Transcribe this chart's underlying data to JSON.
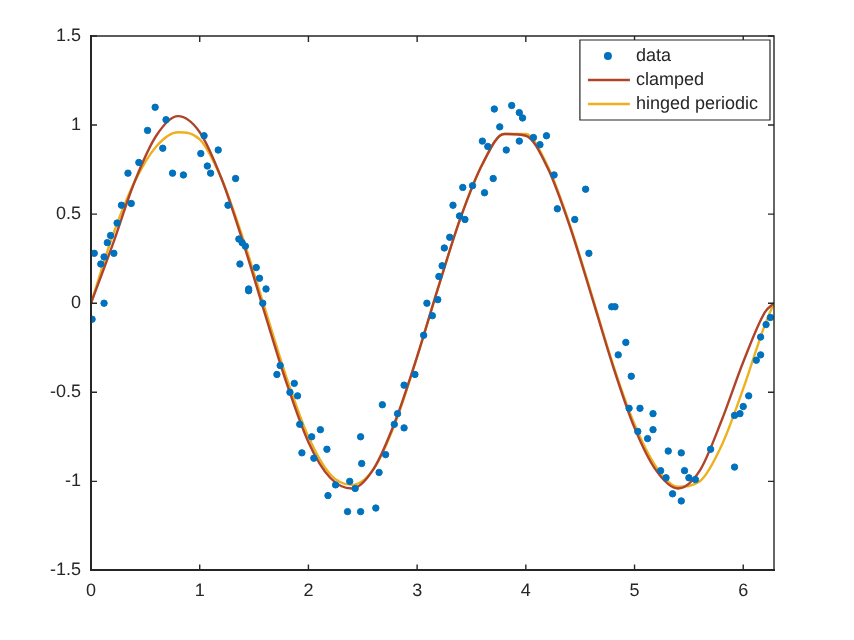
{
  "chart_data": {
    "type": "line",
    "xlim": [
      0,
      6.283
    ],
    "xticks": [
      0,
      1,
      2,
      3,
      4,
      5,
      6
    ],
    "ylim": [
      -1.5,
      1.5
    ],
    "yticks": [
      -1.5,
      -1,
      -0.5,
      0,
      0.5,
      1,
      1.5
    ],
    "grid": false,
    "legend": "top right",
    "series": [
      {
        "name": "data",
        "type": "scatter",
        "marker": "circle",
        "color": "#0072bd",
        "x": [
          0.01,
          0.03,
          0.09,
          0.12,
          0.12,
          0.15,
          0.18,
          0.21,
          0.24,
          0.28,
          0.34,
          0.37,
          0.44,
          0.52,
          0.59,
          0.66,
          0.69,
          0.75,
          0.85,
          1.01,
          1.04,
          1.07,
          1.1,
          1.17,
          1.26,
          1.33,
          1.36,
          1.37,
          1.39,
          1.42,
          1.45,
          1.45,
          1.52,
          1.55,
          1.58,
          1.61,
          1.71,
          1.74,
          1.83,
          1.87,
          1.9,
          1.92,
          1.94,
          2.03,
          2.05,
          2.11,
          2.17,
          2.18,
          2.25,
          2.36,
          2.38,
          2.43,
          2.48,
          2.48,
          2.49,
          2.62,
          2.65,
          2.68,
          2.71,
          2.79,
          2.82,
          2.88,
          2.88,
          2.98,
          3.06,
          3.09,
          3.14,
          3.19,
          3.2,
          3.23,
          3.25,
          3.3,
          3.33,
          3.39,
          3.42,
          3.44,
          3.51,
          3.6,
          3.62,
          3.65,
          3.7,
          3.71,
          3.76,
          3.82,
          3.87,
          3.94,
          3.94,
          3.97,
          4.07,
          4.13,
          4.19,
          4.26,
          4.29,
          4.45,
          4.55,
          4.58,
          4.79,
          4.82,
          4.85,
          4.92,
          4.95,
          4.97,
          5.03,
          5.05,
          5.12,
          5.17,
          5.17,
          5.24,
          5.29,
          5.31,
          5.35,
          5.43,
          5.43,
          5.46,
          5.5,
          5.56,
          5.7,
          5.92,
          5.92,
          5.97,
          6.0,
          6.05,
          6.12,
          6.16,
          6.16,
          6.21,
          6.25
        ],
        "values": [
          -0.09,
          0.28,
          0.22,
          0.26,
          0.0,
          0.34,
          0.38,
          0.28,
          0.45,
          0.55,
          0.73,
          0.56,
          0.79,
          0.97,
          1.1,
          0.87,
          1.03,
          0.73,
          0.72,
          0.84,
          0.94,
          0.77,
          0.73,
          0.86,
          0.55,
          0.7,
          0.36,
          0.22,
          0.34,
          0.32,
          0.07,
          0.08,
          0.2,
          0.14,
          0.0,
          0.08,
          -0.4,
          -0.35,
          -0.5,
          -0.45,
          -0.52,
          -0.68,
          -0.84,
          -0.75,
          -0.87,
          -0.71,
          -0.82,
          -1.08,
          -1.02,
          -1.17,
          -1.0,
          -1.04,
          -0.75,
          -1.17,
          -0.9,
          -1.15,
          -0.95,
          -0.57,
          -0.85,
          -0.68,
          -0.62,
          -0.7,
          -0.46,
          -0.4,
          -0.18,
          0.0,
          -0.07,
          0.02,
          0.15,
          0.21,
          0.31,
          0.37,
          0.55,
          0.49,
          0.65,
          0.47,
          0.66,
          0.91,
          0.62,
          0.88,
          0.7,
          1.09,
          0.99,
          0.86,
          1.11,
          1.07,
          0.91,
          1.04,
          0.93,
          0.89,
          0.94,
          0.72,
          0.53,
          0.47,
          0.64,
          0.28,
          -0.02,
          -0.02,
          -0.29,
          -0.22,
          -0.59,
          -0.41,
          -0.72,
          -0.59,
          -0.76,
          -0.71,
          -0.62,
          -0.94,
          -0.98,
          -0.83,
          -1.07,
          -0.84,
          -1.11,
          -0.94,
          -0.98,
          -0.99,
          -0.82,
          -0.63,
          -0.92,
          -0.62,
          -0.58,
          -0.52,
          -0.32,
          -0.29,
          -0.19,
          -0.12,
          -0.08
        ]
      },
      {
        "name": "clamped",
        "type": "line",
        "color": "#b0442a",
        "x": [
          0,
          0.2,
          0.4,
          0.6,
          0.8,
          1.0,
          1.2,
          1.4,
          1.6,
          1.8,
          2.0,
          2.2,
          2.4,
          2.6,
          2.8,
          3.0,
          3.2,
          3.4,
          3.6,
          3.8,
          4.0,
          4.2,
          4.4,
          4.6,
          4.8,
          5.0,
          5.2,
          5.4,
          5.6,
          5.8,
          6.0,
          6.2,
          6.283
        ],
        "values": [
          0,
          0.33,
          0.68,
          0.94,
          1.05,
          0.96,
          0.7,
          0.34,
          -0.06,
          -0.45,
          -0.78,
          -0.98,
          -1.04,
          -0.93,
          -0.66,
          -0.3,
          0.1,
          0.48,
          0.78,
          0.95,
          0.94,
          0.76,
          0.44,
          0.05,
          -0.35,
          -0.7,
          -0.94,
          -1.04,
          -0.94,
          -0.66,
          -0.33,
          -0.05,
          0
        ]
      },
      {
        "name": "hinged periodic",
        "type": "line",
        "color": "#edb120",
        "x": [
          0,
          0.2,
          0.4,
          0.6,
          0.8,
          1.0,
          1.2,
          1.4,
          1.6,
          1.8,
          2.0,
          2.2,
          2.4,
          2.6,
          2.8,
          3.0,
          3.2,
          3.4,
          3.6,
          3.8,
          4.0,
          4.2,
          4.4,
          4.6,
          4.8,
          5.0,
          5.2,
          5.4,
          5.6,
          5.8,
          6.0,
          6.2,
          6.283
        ],
        "values": [
          0,
          0.38,
          0.68,
          0.88,
          0.96,
          0.92,
          0.7,
          0.36,
          -0.03,
          -0.42,
          -0.75,
          -0.96,
          -1.02,
          -0.93,
          -0.67,
          -0.3,
          0.1,
          0.48,
          0.78,
          0.95,
          0.95,
          0.77,
          0.45,
          0.06,
          -0.34,
          -0.68,
          -0.92,
          -1.03,
          -1.0,
          -0.8,
          -0.48,
          -0.12,
          0
        ]
      }
    ]
  }
}
